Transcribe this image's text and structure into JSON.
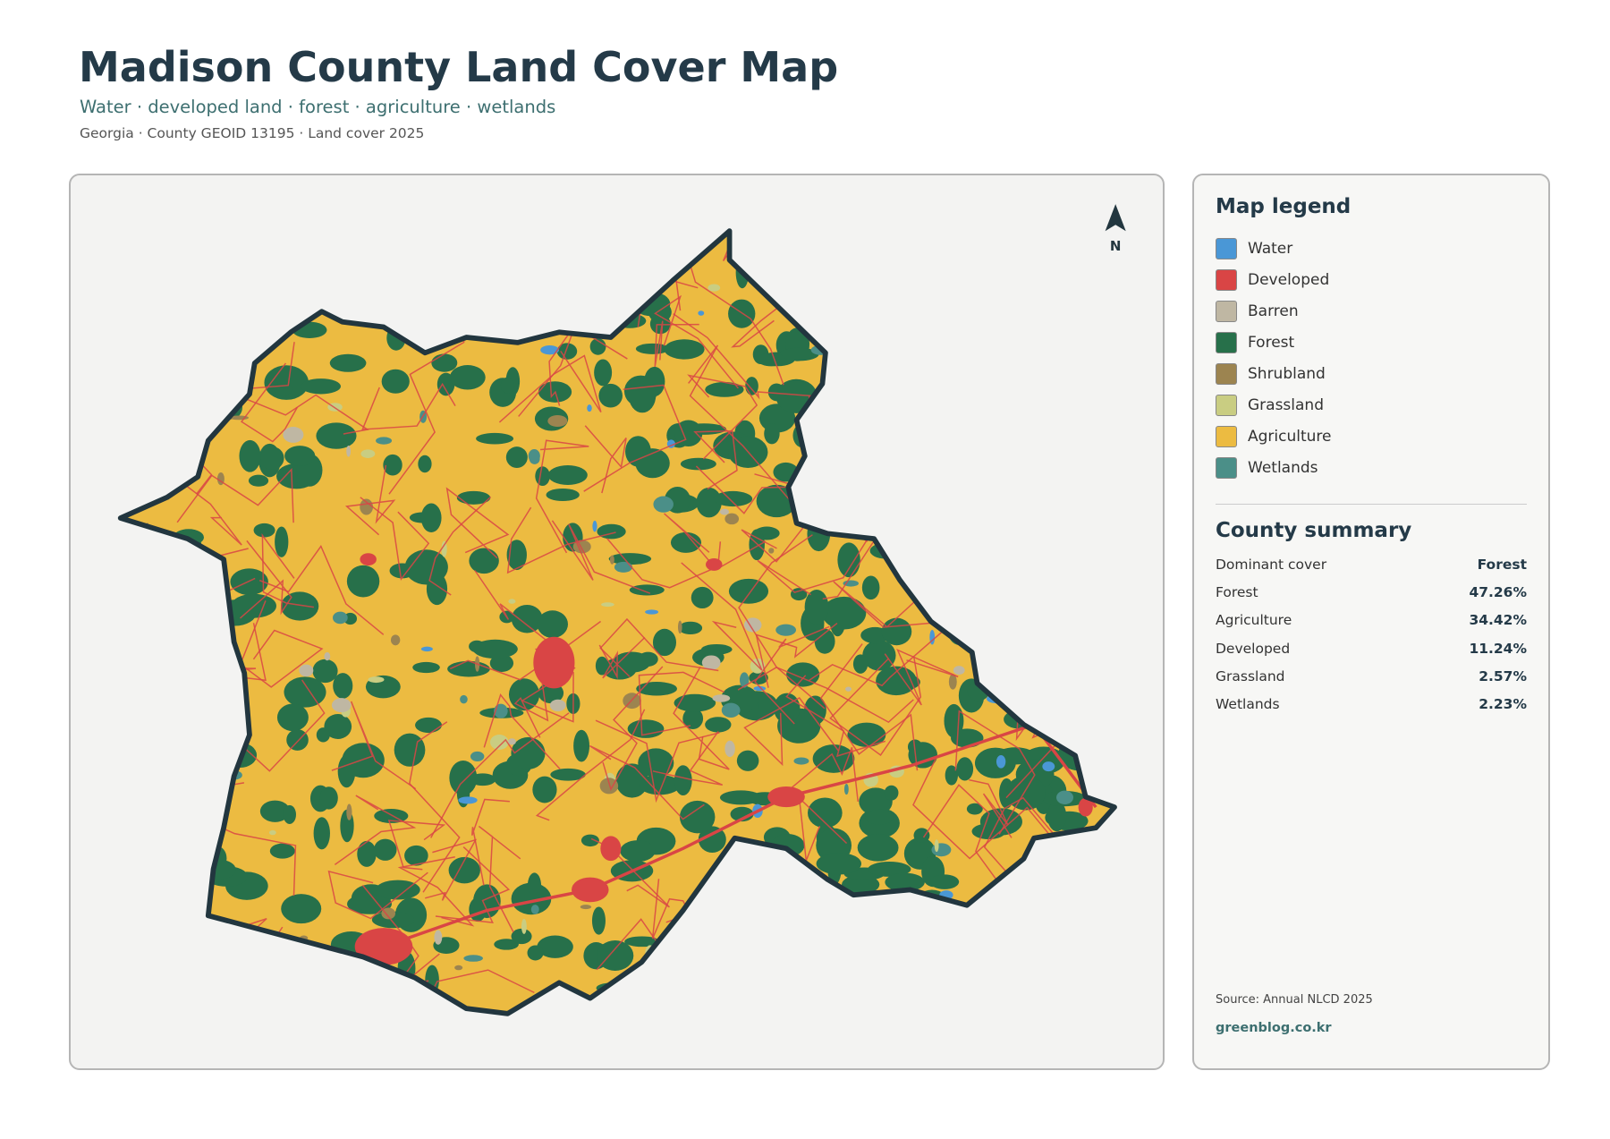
{
  "header": {
    "title": "Madison County Land Cover Map",
    "subtitle": "Water · developed land · forest · agriculture · wetlands",
    "meta": "Georgia · County GEOID 13195 · Land cover 2025"
  },
  "map": {
    "north": "N"
  },
  "legend": {
    "title": "Map legend",
    "items": [
      {
        "label": "Water",
        "color": "#4a97d6"
      },
      {
        "label": "Developed",
        "color": "#d94545"
      },
      {
        "label": "Barren",
        "color": "#bfb7a3"
      },
      {
        "label": "Forest",
        "color": "#27704a"
      },
      {
        "label": "Shrubland",
        "color": "#9c8450"
      },
      {
        "label": "Grassland",
        "color": "#c9cd82"
      },
      {
        "label": "Agriculture",
        "color": "#ecbb41"
      },
      {
        "label": "Wetlands",
        "color": "#4b8f88"
      }
    ]
  },
  "summary": {
    "title": "County summary",
    "rows": [
      {
        "label": "Dominant cover",
        "value": "Forest"
      },
      {
        "label": "Forest",
        "value": "47.26%"
      },
      {
        "label": "Agriculture",
        "value": "34.42%"
      },
      {
        "label": "Developed",
        "value": "11.24%"
      },
      {
        "label": "Grassland",
        "value": "2.57%"
      },
      {
        "label": "Wetlands",
        "value": "2.23%"
      }
    ]
  },
  "footer": {
    "source": "Source: Annual NLCD 2025",
    "site": "greenblog.co.kr"
  }
}
